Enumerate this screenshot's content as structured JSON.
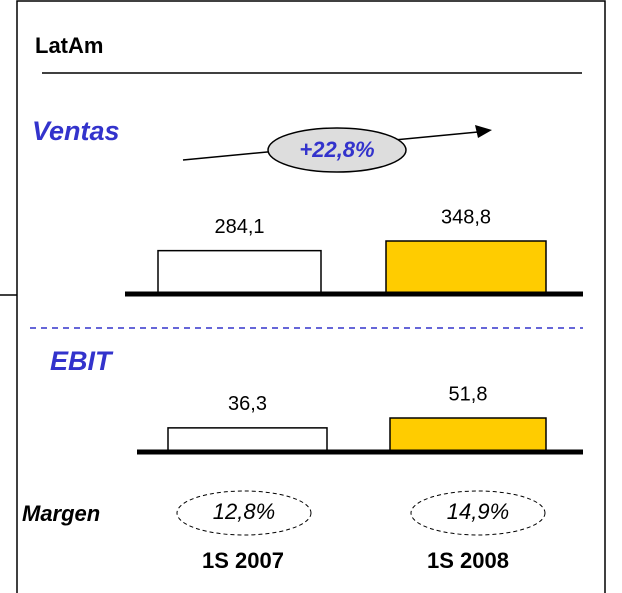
{
  "header": {
    "title": "LatAm"
  },
  "chart_data": [
    {
      "type": "bar",
      "title": "Ventas",
      "values": [
        284.1,
        348.8
      ],
      "value_labels": [
        "284,1",
        "348,8"
      ],
      "colors": [
        "#ffffff",
        "#ffcc00"
      ],
      "annotation": "+22,8%"
    },
    {
      "type": "bar",
      "title": "EBIT",
      "categories": [
        "1S 2007",
        "1S 2008"
      ],
      "values": [
        36.3,
        51.8
      ],
      "value_labels": [
        "36,3",
        "51,8"
      ],
      "colors": [
        "#ffffff",
        "#ffcc00"
      ],
      "margin": {
        "label": "Margen",
        "values": [
          "12,8%",
          "14,9%"
        ]
      }
    }
  ]
}
